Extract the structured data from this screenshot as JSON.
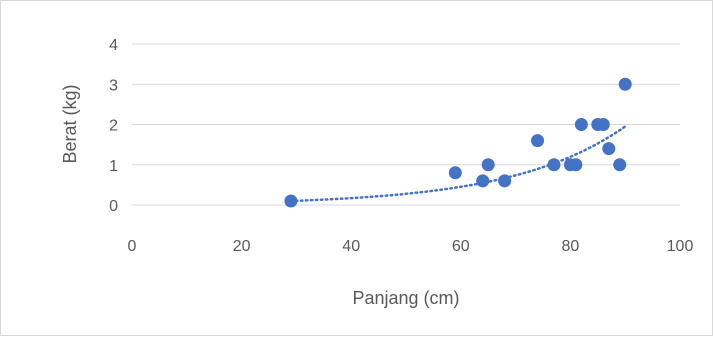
{
  "chart_data": {
    "type": "scatter",
    "title": "",
    "xlabel": "Panjang (cm)",
    "ylabel": "Berat (kg)",
    "xlim": [
      0,
      100
    ],
    "ylim": [
      0,
      4
    ],
    "x_ticks": [
      "0",
      "20",
      "40",
      "60",
      "80",
      "100"
    ],
    "y_ticks": [
      "0",
      "1",
      "2",
      "3",
      "4"
    ],
    "grid": "horizontal",
    "legend": "none",
    "series": [
      {
        "x": [
          29,
          59,
          64,
          65,
          68,
          74,
          77,
          80,
          81,
          82,
          85,
          86,
          87,
          89,
          90
        ],
        "y": [
          0.1,
          0.8,
          0.6,
          1.0,
          0.6,
          1.6,
          1.0,
          1.0,
          1.0,
          2.0,
          2.0,
          2.0,
          1.4,
          1.0,
          3.0
        ],
        "color": "#4472c4"
      }
    ],
    "trendline": {
      "type": "exponential",
      "style": "dotted",
      "x_range": [
        29,
        90
      ],
      "y_range": [
        0.1,
        1.95
      ],
      "color": "#4472c4"
    }
  }
}
